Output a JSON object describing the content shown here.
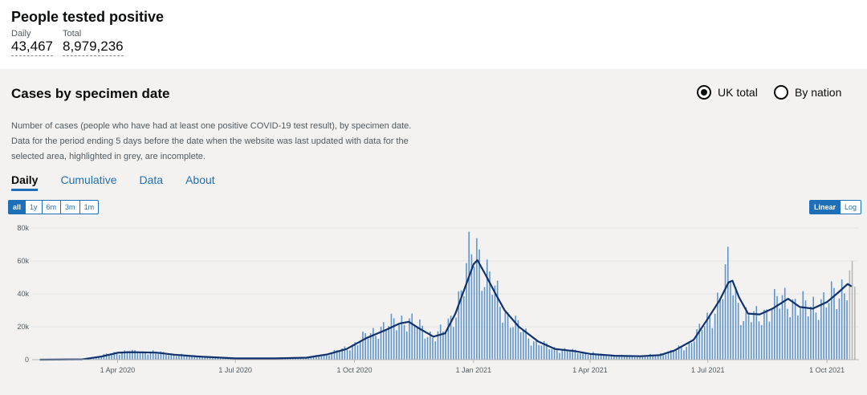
{
  "header": {
    "title": "People tested positive",
    "daily_label": "Daily",
    "daily_value": "43,467",
    "total_label": "Total",
    "total_value": "8,979,236"
  },
  "card": {
    "title": "Cases by specimen date",
    "radio_uk": "UK total",
    "radio_nation": "By nation",
    "description": "Number of cases (people who have had at least one positive COVID-19 test result), by specimen date. Data for the period ending 5 days before the date when the website was last updated with data for the selected area, highlighted in grey, are incomplete.",
    "tabs": [
      "Daily",
      "Cumulative",
      "Data",
      "About"
    ],
    "range_buttons": [
      "all",
      "1y",
      "6m",
      "3m",
      "1m"
    ],
    "scale_buttons": [
      "Linear",
      "Log"
    ]
  },
  "colors": {
    "bar": "#5f95cc",
    "line": "#12326d",
    "incomplete": "#b7b7b7",
    "accent": "#1d70b8"
  },
  "chart_data": {
    "type": "bar",
    "ylim": [
      0,
      80000
    ],
    "y_ticks": [
      "0",
      "20k",
      "40k",
      "60k",
      "80k"
    ],
    "y_tick_values": [
      0,
      20000,
      40000,
      60000,
      80000
    ],
    "x_ticks": [
      "1 Apr 2020",
      "1 Jul 2020",
      "1 Oct 2020",
      "1 Jan 2021",
      "1 Apr 2021",
      "1 Jul 2021",
      "1 Oct 2021"
    ],
    "x_tick_dates": [
      "2020-04-01",
      "2020-07-01",
      "2020-10-01",
      "2021-01-01",
      "2021-04-01",
      "2021-07-01",
      "2021-10-01"
    ],
    "x_range": [
      "2020-01-31",
      "2021-10-22"
    ],
    "incomplete_from": "2021-10-17",
    "series": [
      {
        "kind": "daily bars",
        "points": [
          [
            "2020-02-15",
            0
          ],
          [
            "2020-03-10",
            500
          ],
          [
            "2020-03-25",
            3500
          ],
          [
            "2020-04-05",
            4800
          ],
          [
            "2020-04-20",
            4600
          ],
          [
            "2020-05-01",
            4500
          ],
          [
            "2020-05-15",
            3000
          ],
          [
            "2020-06-01",
            2000
          ],
          [
            "2020-07-01",
            800
          ],
          [
            "2020-08-01",
            900
          ],
          [
            "2020-08-25",
            1200
          ],
          [
            "2020-09-10",
            3500
          ],
          [
            "2020-09-25",
            7000
          ],
          [
            "2020-10-05",
            12000
          ],
          [
            "2020-10-20",
            19000
          ],
          [
            "2020-11-01",
            22000
          ],
          [
            "2020-11-08",
            25000
          ],
          [
            "2020-11-15",
            22000
          ],
          [
            "2020-11-25",
            17000
          ],
          [
            "2020-12-01",
            14000
          ],
          [
            "2020-12-10",
            18000
          ],
          [
            "2020-12-18",
            32000
          ],
          [
            "2020-12-25",
            48000
          ],
          [
            "2020-12-29",
            62000
          ],
          [
            "2021-01-02",
            72000
          ],
          [
            "2021-01-08",
            56000
          ],
          [
            "2021-01-15",
            44000
          ],
          [
            "2021-01-22",
            32000
          ],
          [
            "2021-02-01",
            22000
          ],
          [
            "2021-02-15",
            12000
          ],
          [
            "2021-03-01",
            7000
          ],
          [
            "2021-03-15",
            5500
          ],
          [
            "2021-04-01",
            3800
          ],
          [
            "2021-04-15",
            2600
          ],
          [
            "2021-05-01",
            2000
          ],
          [
            "2021-05-15",
            2400
          ],
          [
            "2021-06-01",
            4500
          ],
          [
            "2021-06-15",
            9000
          ],
          [
            "2021-06-25",
            18000
          ],
          [
            "2021-07-05",
            30000
          ],
          [
            "2021-07-12",
            42000
          ],
          [
            "2021-07-17",
            56000
          ],
          [
            "2021-07-22",
            40000
          ],
          [
            "2021-07-28",
            26000
          ],
          [
            "2021-08-05",
            25000
          ],
          [
            "2021-08-15",
            30000
          ],
          [
            "2021-08-25",
            35000
          ],
          [
            "2021-09-01",
            38000
          ],
          [
            "2021-09-08",
            32000
          ],
          [
            "2021-09-15",
            31000
          ],
          [
            "2021-09-22",
            35000
          ],
          [
            "2021-10-01",
            34000
          ],
          [
            "2021-10-10",
            42000
          ],
          [
            "2021-10-17",
            50000
          ],
          [
            "2021-10-22",
            45000
          ]
        ]
      },
      {
        "kind": "rolling average line",
        "points": [
          [
            "2020-02-01",
            0
          ],
          [
            "2020-03-05",
            200
          ],
          [
            "2020-03-20",
            2000
          ],
          [
            "2020-04-01",
            4200
          ],
          [
            "2020-04-10",
            4600
          ],
          [
            "2020-05-01",
            4300
          ],
          [
            "2020-05-15",
            3000
          ],
          [
            "2020-06-01",
            2000
          ],
          [
            "2020-07-01",
            800
          ],
          [
            "2020-08-01",
            800
          ],
          [
            "2020-08-25",
            1200
          ],
          [
            "2020-09-10",
            3200
          ],
          [
            "2020-09-25",
            6500
          ],
          [
            "2020-10-10",
            13000
          ],
          [
            "2020-10-25",
            18000
          ],
          [
            "2020-11-05",
            22000
          ],
          [
            "2020-11-12",
            23000
          ],
          [
            "2020-11-20",
            19000
          ],
          [
            "2020-12-01",
            14000
          ],
          [
            "2020-12-10",
            16000
          ],
          [
            "2020-12-18",
            28000
          ],
          [
            "2020-12-25",
            43000
          ],
          [
            "2021-01-01",
            58000
          ],
          [
            "2021-01-04",
            60500
          ],
          [
            "2021-01-10",
            52000
          ],
          [
            "2021-01-18",
            40000
          ],
          [
            "2021-01-25",
            30000
          ],
          [
            "2021-02-05",
            20000
          ],
          [
            "2021-02-20",
            11000
          ],
          [
            "2021-03-05",
            6500
          ],
          [
            "2021-03-20",
            5200
          ],
          [
            "2021-04-01",
            3500
          ],
          [
            "2021-04-20",
            2400
          ],
          [
            "2021-05-10",
            2100
          ],
          [
            "2021-05-25",
            2800
          ],
          [
            "2021-06-05",
            5500
          ],
          [
            "2021-06-20",
            12000
          ],
          [
            "2021-07-01",
            25000
          ],
          [
            "2021-07-10",
            36000
          ],
          [
            "2021-07-17",
            47000
          ],
          [
            "2021-07-20",
            48000
          ],
          [
            "2021-07-25",
            38000
          ],
          [
            "2021-08-01",
            28000
          ],
          [
            "2021-08-10",
            27500
          ],
          [
            "2021-08-20",
            31000
          ],
          [
            "2021-09-01",
            37000
          ],
          [
            "2021-09-10",
            32000
          ],
          [
            "2021-09-20",
            31000
          ],
          [
            "2021-10-01",
            35000
          ],
          [
            "2021-10-10",
            41000
          ],
          [
            "2021-10-17",
            46000
          ],
          [
            "2021-10-20",
            44500
          ]
        ]
      }
    ]
  }
}
